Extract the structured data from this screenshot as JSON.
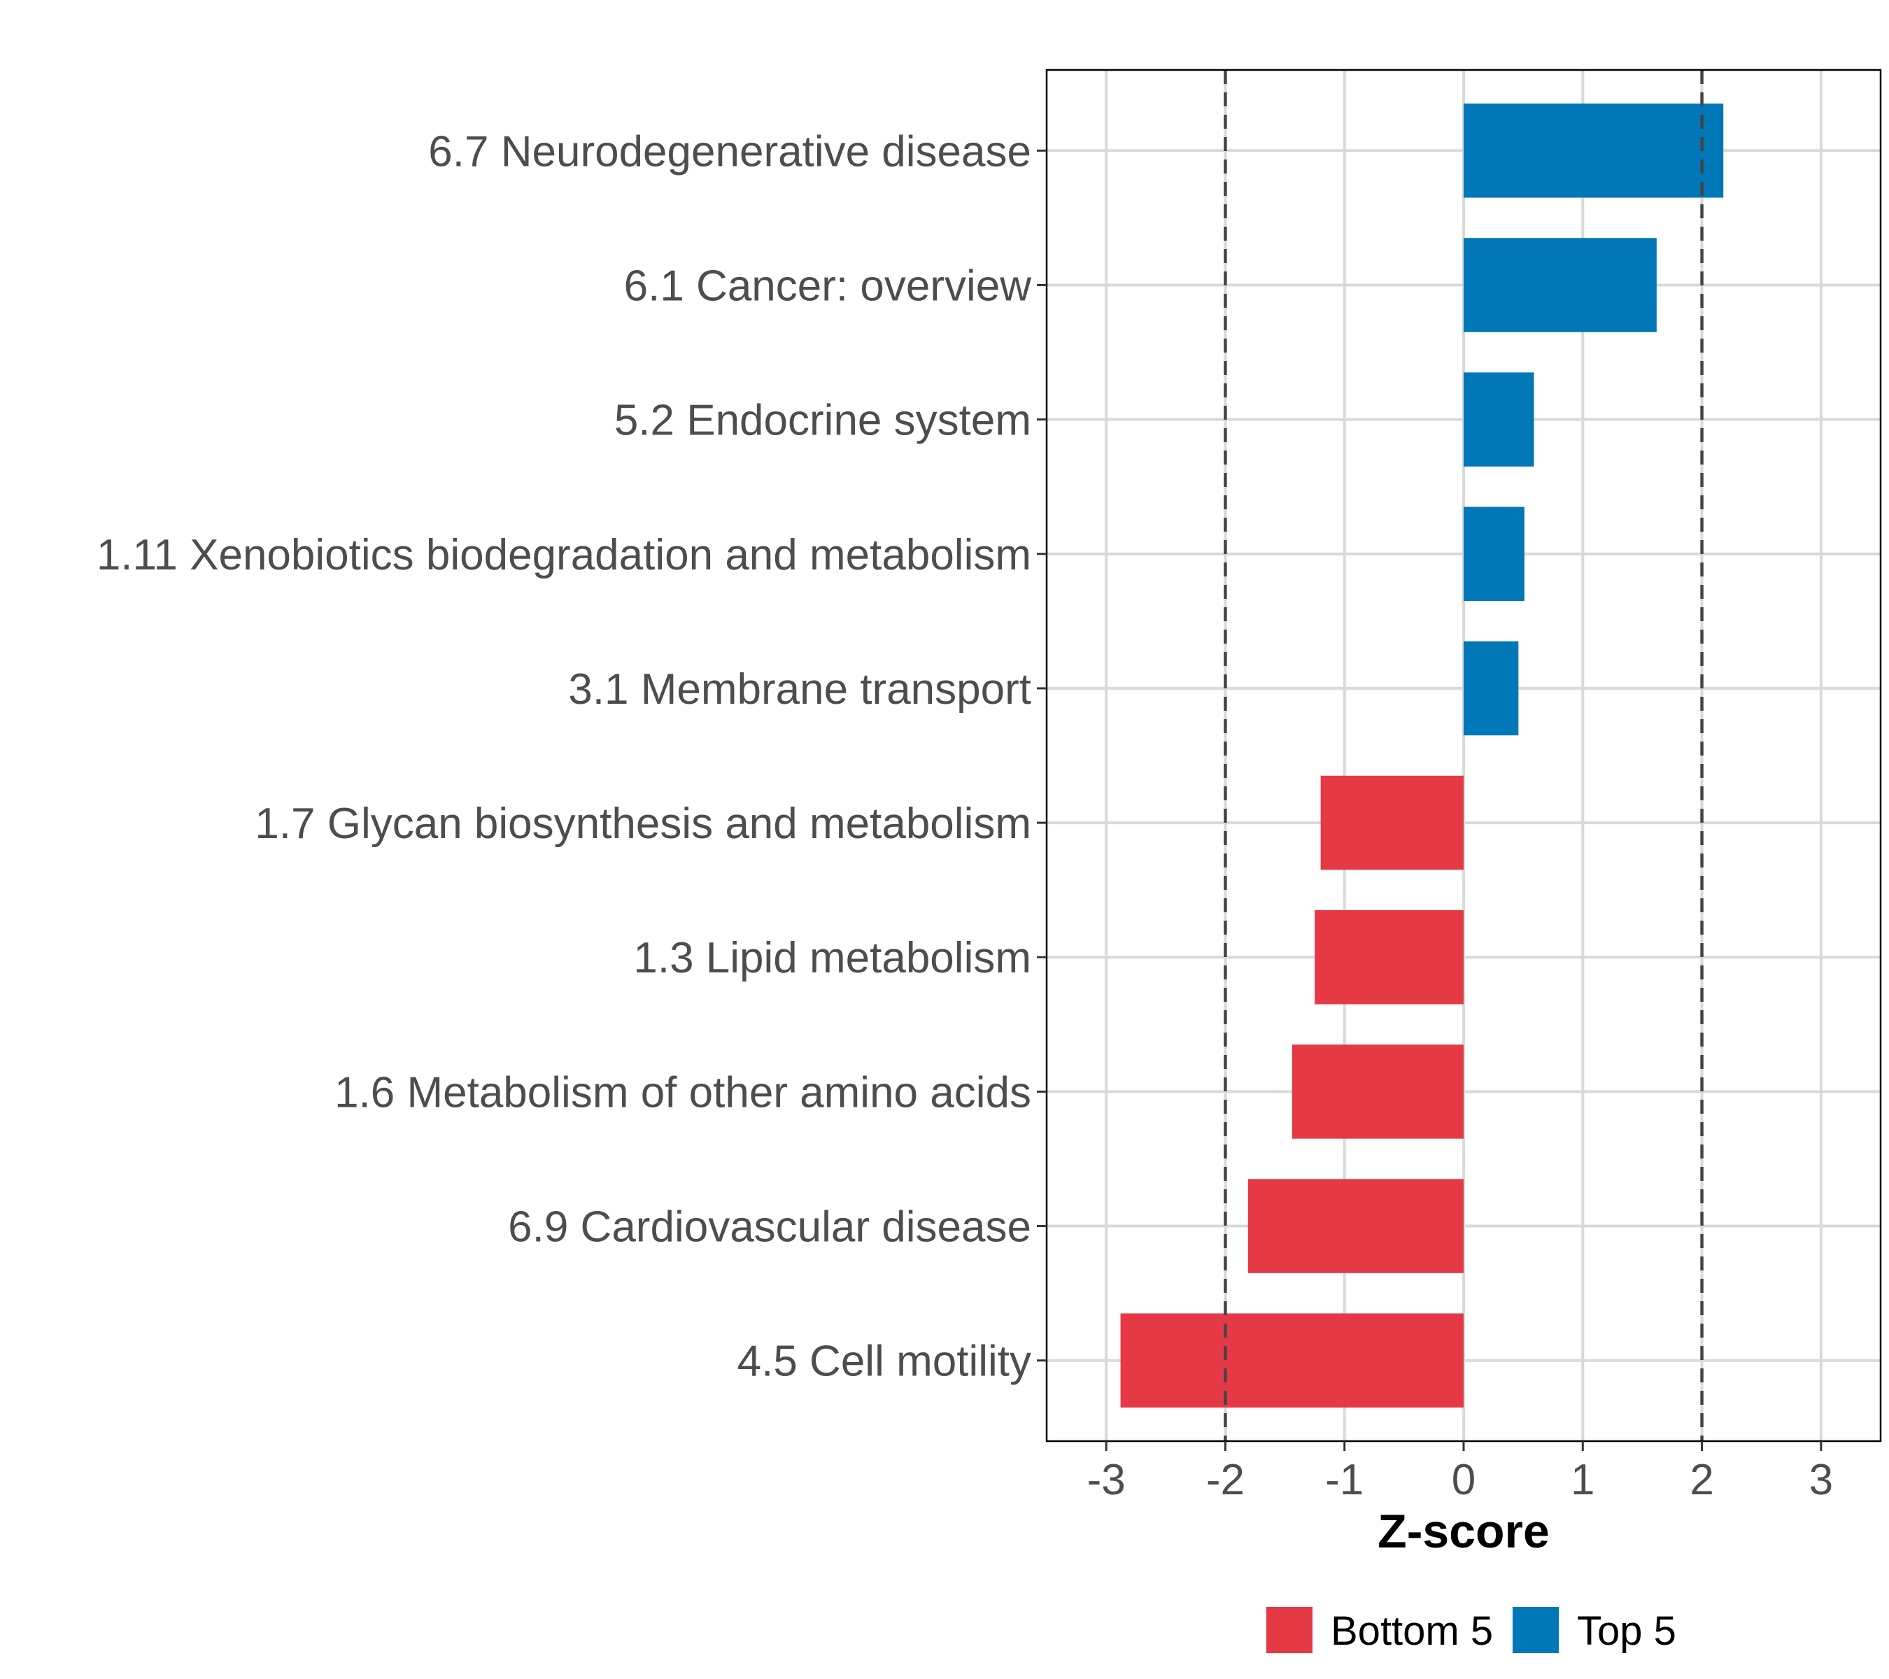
{
  "chart_data": {
    "type": "bar",
    "orientation": "horizontal",
    "title": "",
    "xlabel": "Z-score",
    "ylabel": "",
    "xlim": [
      -3.5,
      3.5
    ],
    "xticks": [
      -3,
      -2,
      -1,
      0,
      1,
      2,
      3
    ],
    "xtick_labels": [
      "-3",
      "-2",
      "-1",
      "0",
      "1",
      "2",
      "3"
    ],
    "reference_lines": [
      -2,
      2
    ],
    "grid": true,
    "legend_position": "bottom",
    "categories": [
      "6.7 Neurodegenerative disease",
      "6.1 Cancer: overview",
      "5.2 Endocrine system",
      "1.11 Xenobiotics biodegradation and metabolism",
      "3.1 Membrane transport",
      "1.7 Glycan biosynthesis and metabolism",
      "1.3 Lipid metabolism",
      "1.6 Metabolism of other amino acids",
      "6.9 Cardiovascular disease",
      "4.5 Cell motility"
    ],
    "values": [
      2.18,
      1.62,
      0.59,
      0.51,
      0.46,
      -1.2,
      -1.25,
      -1.44,
      -1.81,
      -2.88
    ],
    "groups": [
      "Top 5",
      "Top 5",
      "Top 5",
      "Top 5",
      "Top 5",
      "Bottom 5",
      "Bottom 5",
      "Bottom 5",
      "Bottom 5",
      "Bottom 5"
    ],
    "legend": [
      {
        "name": "Bottom 5",
        "color": "#E63946"
      },
      {
        "name": "Top 5",
        "color": "#0077B6"
      }
    ]
  }
}
